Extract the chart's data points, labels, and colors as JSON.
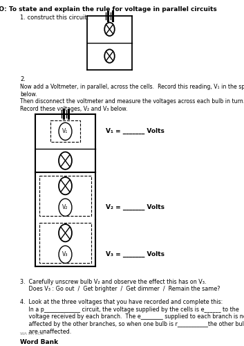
{
  "title": "LO: To state and explain the rule for voltage in parallel circuits",
  "background_color": "#ffffff",
  "text_color": "#000000",
  "section1_label": "1. construct this circuit:",
  "section2_label": "2.",
  "sec2_line1": "Now add a Voltmeter, in parallel, across the cells.  Record this reading, V₁ in the space",
  "sec2_line2": "below.",
  "sec2_line3": "Then disconnect the voltmeter and measure the voltages across each bulb in turn.",
  "sec2_line4": "Record these voltages, V₂ and V₃ below.",
  "v1_label": "V₁ = _______ Volts",
  "v2_label": "V₂ = _______ Volts",
  "v3_label": "V₃ = _______ Volts",
  "sec3_line1": "3.  Carefully unscrew bulb V₂ and observe the effect this has on V₃.",
  "sec3_line2": "     Does V₃ : Go out  /  Get brighter  /  Get dimmer  /  Remain the same?",
  "sec4_line1": "4.  Look at the three voltages that you have recorded and complete this:",
  "sec4_line2": "     In a p_____________ circuit, the voltage supplied by the cells is e______ to the",
  "sec4_line3": "     voltage received by each branch.  The e________ supplied to each branch is not",
  "sec4_line4": "     affected by the other branches, so when one bulb is r___________the other bulbs",
  "sec4_line5": "     are unaffected.",
  "wordbank_label": "Word Bank",
  "footer": "WA LA LCR"
}
